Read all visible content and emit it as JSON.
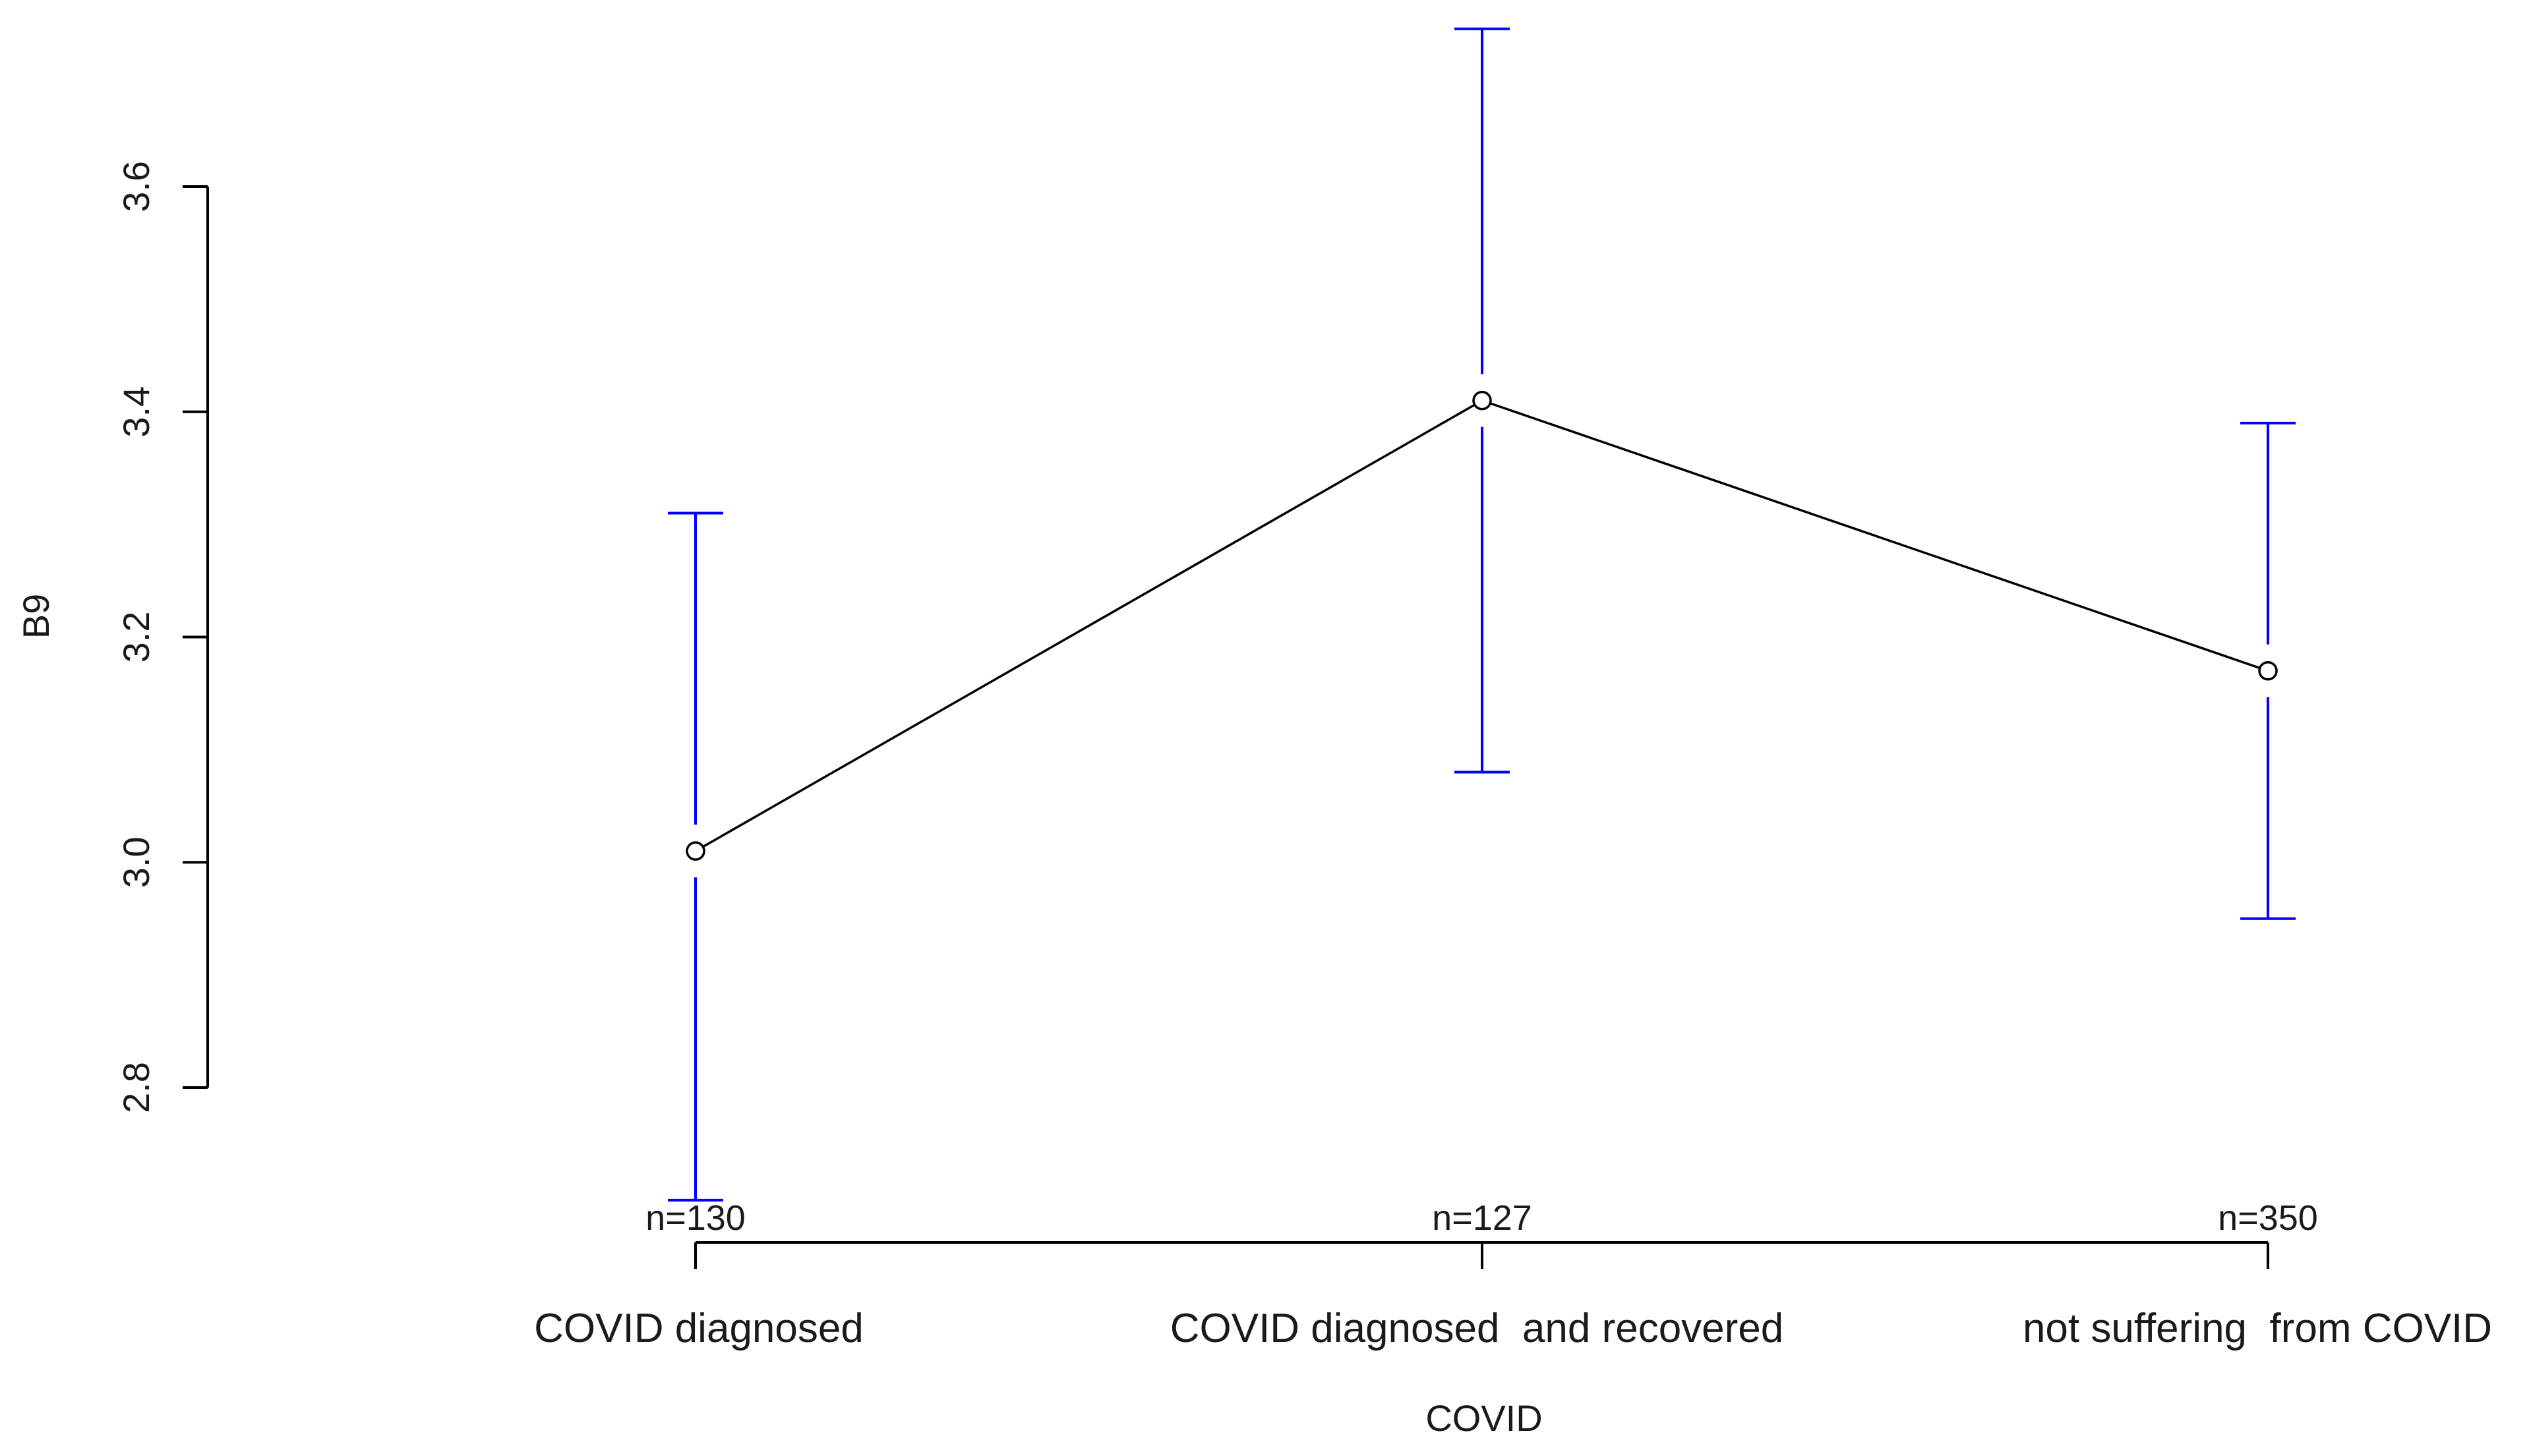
{
  "chart_data": {
    "type": "line",
    "xlabel": "COVID",
    "ylabel": "B9",
    "categories": [
      "COVID diagnosed",
      "COVID diagnosed  and recovered",
      "not suffering  from COVID"
    ],
    "sample_sizes": [
      "n=130",
      "n=127",
      "n=350"
    ],
    "series": [
      {
        "values": [
          3.01,
          3.41,
          3.17
        ],
        "error_lower": [
          2.7,
          3.08,
          2.95
        ],
        "error_upper": [
          3.31,
          3.74,
          3.39
        ]
      }
    ],
    "yticks": [
      "2.8",
      "3.0",
      "3.2",
      "3.4",
      "3.6"
    ],
    "ylim": [
      2.8,
      3.6
    ],
    "grid": false,
    "legend": "none",
    "colors": {
      "line": "#000000",
      "error_bars": "#0000ff",
      "axis": "#000000"
    }
  }
}
